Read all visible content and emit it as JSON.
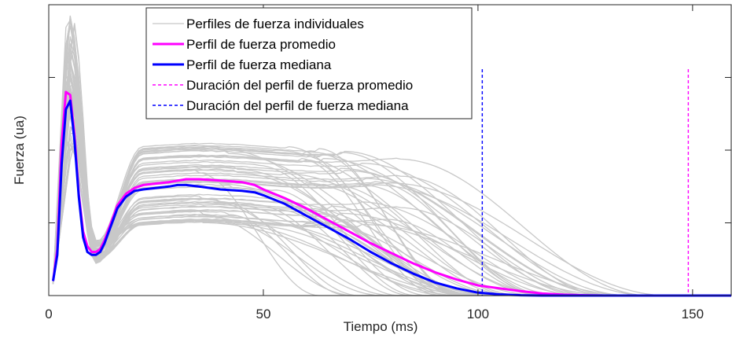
{
  "chart_data": {
    "type": "line",
    "title": "",
    "xlabel": "Tiempo (ms)",
    "ylabel": "Fuerza (ua)",
    "xlim": [
      0,
      159
    ],
    "ylim": [
      0,
      100
    ],
    "xticks": [
      0,
      50,
      100,
      150
    ],
    "xtick_labels": [
      "0",
      "50",
      "100",
      "150"
    ],
    "yticks": [
      25,
      50,
      75
    ],
    "ytick_labels": [
      "",
      "",
      ""
    ],
    "grid": false,
    "legend_position": "top-center",
    "series": [
      {
        "name": "Perfil de fuerza promedio",
        "color": "#ff00ff",
        "x": [
          1,
          2,
          3,
          4,
          5,
          6,
          7,
          8,
          9,
          10,
          11,
          12,
          13,
          14,
          15,
          16,
          18,
          20,
          22,
          25,
          28,
          30,
          32,
          35,
          40,
          45,
          48,
          50,
          55,
          60,
          65,
          70,
          75,
          80,
          85,
          90,
          95,
          100,
          105,
          110,
          115,
          120,
          125,
          130,
          140,
          150,
          159
        ],
        "y": [
          5,
          16,
          52,
          70,
          69,
          55,
          35,
          22,
          17,
          15,
          15,
          16,
          19,
          23,
          27,
          31,
          35,
          37,
          38,
          38.5,
          39,
          39.5,
          40,
          40,
          39.5,
          39,
          38,
          36.5,
          33.5,
          30,
          26,
          22,
          18,
          14.5,
          11,
          8,
          5.5,
          3.5,
          2.5,
          1.5,
          0.7,
          0.3,
          0.1,
          0,
          0,
          0,
          0
        ]
      },
      {
        "name": "Perfil de fuerza mediana",
        "color": "#0000ff",
        "x": [
          1,
          2,
          3,
          4,
          5,
          6,
          7,
          8,
          9,
          10,
          11,
          12,
          13,
          14,
          15,
          16,
          18,
          20,
          22,
          25,
          28,
          30,
          32,
          35,
          40,
          45,
          48,
          50,
          55,
          60,
          65,
          70,
          75,
          80,
          85,
          90,
          95,
          100,
          105,
          110,
          115,
          120,
          130,
          140,
          150,
          159
        ],
        "y": [
          5,
          14,
          45,
          64,
          67,
          53,
          34,
          20,
          15,
          14,
          14,
          15,
          18,
          22,
          26,
          30,
          34,
          36,
          36.5,
          37,
          37.5,
          38,
          38,
          37.5,
          36.5,
          36,
          35.5,
          34.5,
          31.5,
          27.5,
          23.5,
          19.5,
          15,
          11,
          7.5,
          4.5,
          2.5,
          1,
          0.4,
          0.1,
          0,
          0,
          0,
          0,
          0,
          0
        ]
      }
    ],
    "individual_profiles": {
      "name": "Perfiles de fuerza individuales",
      "color": "#c8c8c8",
      "count": 60
    },
    "vertical_lines": [
      {
        "name": "Duración del perfil de fuerza promedio",
        "x": 149,
        "color": "#ff00ff",
        "style": "dashed"
      },
      {
        "name": "Duración del perfil de fuerza mediana",
        "x": 101,
        "color": "#0000ff",
        "style": "dashed"
      }
    ],
    "legend": [
      {
        "label": "Perfiles de fuerza individuales",
        "color": "#c8c8c8",
        "style": "solid"
      },
      {
        "label": "Perfil de fuerza promedio",
        "color": "#ff00ff",
        "style": "solid"
      },
      {
        "label": "Perfil de fuerza mediana",
        "color": "#0000ff",
        "style": "solid"
      },
      {
        "label": "Duración del perfil de fuerza promedio",
        "color": "#ff00ff",
        "style": "dashed"
      },
      {
        "label": "Duración del perfil de fuerza mediana",
        "color": "#0000ff",
        "style": "dashed"
      }
    ]
  }
}
